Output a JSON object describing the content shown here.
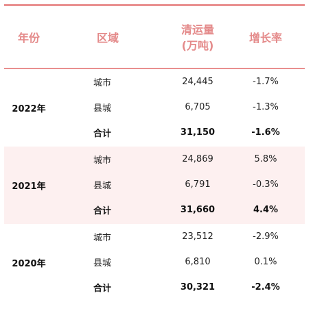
{
  "header": {
    "year": "年份",
    "region": "区域",
    "volume_line1": "清运量",
    "volume_line2": "(万吨)",
    "growth": "增长率"
  },
  "groups": [
    {
      "year": "2022年",
      "rows": [
        {
          "region": "城市",
          "volume": "24,445",
          "growth": "-1.7%"
        },
        {
          "region": "县城",
          "volume": "6,705",
          "growth": "-1.3%"
        },
        {
          "region": "合计",
          "volume": "31,150",
          "growth": "-1.6%"
        }
      ]
    },
    {
      "year": "2021年",
      "rows": [
        {
          "region": "城市",
          "volume": "24,869",
          "growth": "5.8%"
        },
        {
          "region": "县城",
          "volume": "6,791",
          "growth": "-0.3%"
        },
        {
          "region": "合计",
          "volume": "31,660",
          "growth": "4.4%"
        }
      ]
    },
    {
      "year": "2020年",
      "rows": [
        {
          "region": "城市",
          "volume": "23,512",
          "growth": "-2.9%"
        },
        {
          "region": "县城",
          "volume": "6,810",
          "growth": "0.1%"
        },
        {
          "region": "合计",
          "volume": "30,321",
          "growth": "-2.4%"
        }
      ]
    }
  ],
  "colors": {
    "accent": "#e98f8f",
    "header_text": "#e48a8a",
    "shaded_band": "#fdf0f0"
  }
}
